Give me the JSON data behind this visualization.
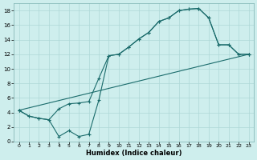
{
  "xlabel": "Humidex (Indice chaleur)",
  "bg_color": "#ceeeed",
  "line_color": "#1a6b6b",
  "grid_color": "#aed8d7",
  "xlim": [
    -0.5,
    23.5
  ],
  "ylim": [
    0,
    19
  ],
  "xticks": [
    0,
    1,
    2,
    3,
    4,
    5,
    6,
    7,
    8,
    9,
    10,
    11,
    12,
    13,
    14,
    15,
    16,
    17,
    18,
    19,
    20,
    21,
    22,
    23
  ],
  "yticks": [
    0,
    2,
    4,
    6,
    8,
    10,
    12,
    14,
    16,
    18
  ],
  "line1_x": [
    0,
    1,
    2,
    3,
    4,
    5,
    6,
    7,
    8,
    9,
    10,
    11,
    12,
    13,
    14,
    15,
    16,
    17,
    18,
    19,
    20,
    21,
    22,
    23
  ],
  "line1_y": [
    4.3,
    3.5,
    3.2,
    3.0,
    4.5,
    5.2,
    5.3,
    5.5,
    8.7,
    11.8,
    12.0,
    13.0,
    14.1,
    15.0,
    16.5,
    17.0,
    18.0,
    18.2,
    18.3,
    17.0,
    13.3,
    13.3,
    12.0,
    12.0
  ],
  "line2_x": [
    0,
    1,
    2,
    3,
    4,
    5,
    6,
    7,
    8,
    9,
    10,
    11,
    12,
    13,
    14,
    15,
    16,
    17,
    18,
    19,
    20,
    21,
    22,
    23
  ],
  "line2_y": [
    4.3,
    3.5,
    3.2,
    3.0,
    0.7,
    1.5,
    0.7,
    1.0,
    5.7,
    11.8,
    12.0,
    13.0,
    14.1,
    15.0,
    16.5,
    17.0,
    18.0,
    18.2,
    18.3,
    17.0,
    13.3,
    13.3,
    12.0,
    12.0
  ],
  "line3_x": [
    0,
    23
  ],
  "line3_y": [
    4.3,
    12.0
  ]
}
